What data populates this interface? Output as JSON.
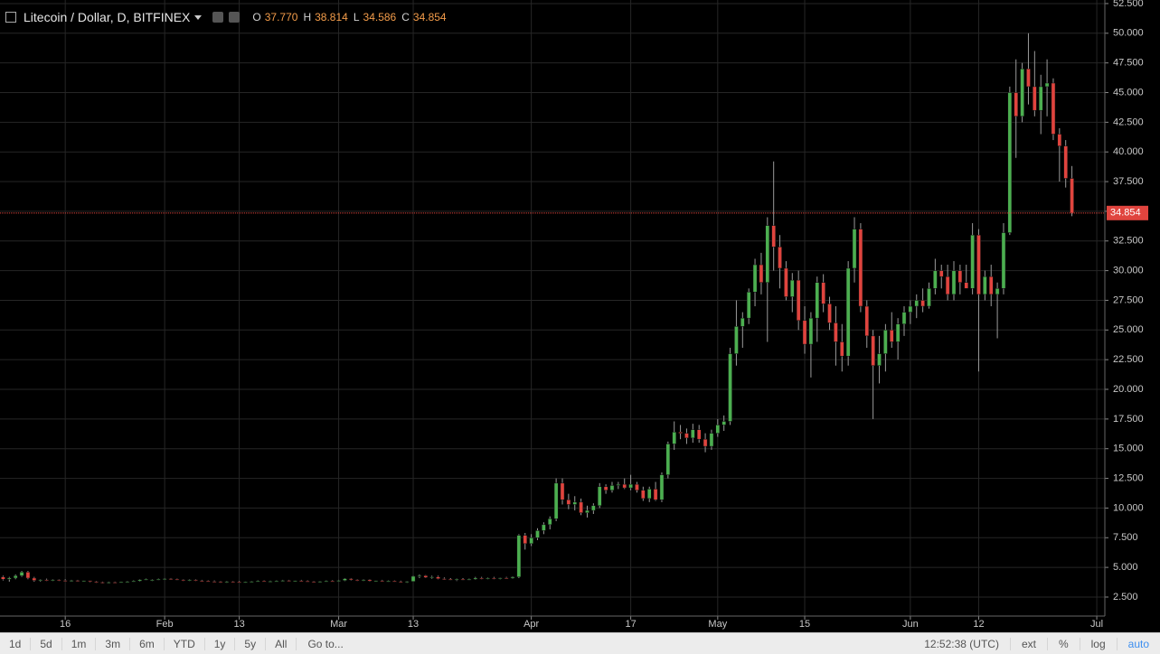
{
  "chart_data": {
    "type": "candlestick",
    "title": "Litecoin / Dollar, D, BITFINEX",
    "ohlc_legend": [
      {
        "key": "O",
        "value": "37.770"
      },
      {
        "key": "H",
        "value": "38.814"
      },
      {
        "key": "L",
        "value": "34.586"
      },
      {
        "key": "C",
        "value": "34.854"
      }
    ],
    "up_color": "#4caf50",
    "down_color": "#e0443e",
    "wick_color": "#9a9a9a",
    "grid": true,
    "xlim": [
      5.5,
      183.3
    ],
    "xticks": [
      16,
      {
        "value": 32,
        "label": "Feb"
      },
      {
        "value": 44,
        "label": "13"
      },
      {
        "value": 60,
        "label": "Mar"
      },
      {
        "value": 72,
        "label": "13"
      },
      {
        "value": 91,
        "label": "Apr"
      },
      {
        "value": 107,
        "label": "17"
      },
      {
        "value": 121,
        "label": "May"
      },
      {
        "value": 135,
        "label": "15"
      },
      {
        "value": 152,
        "label": "Jun"
      },
      {
        "value": 163,
        "label": "12"
      },
      {
        "value": 182,
        "label": "Jul"
      }
    ],
    "ylim": [
      0.9,
      52.8
    ],
    "yticks": [
      {
        "value": 2.5,
        "label": "2.500"
      },
      {
        "value": 5,
        "label": "5.000"
      },
      {
        "value": 7.5,
        "label": "7.500"
      },
      {
        "value": 10,
        "label": "10.000"
      },
      {
        "value": 12.5,
        "label": "12.500"
      },
      {
        "value": 15,
        "label": "15.000"
      },
      {
        "value": 17.5,
        "label": "17.500"
      },
      {
        "value": 20,
        "label": "20.000"
      },
      {
        "value": 22.5,
        "label": "22.500"
      },
      {
        "value": 25,
        "label": "25.000"
      },
      {
        "value": 27.5,
        "label": "27.500"
      },
      {
        "value": 30,
        "label": "30.000"
      },
      {
        "value": 32.5,
        "label": "32.500"
      },
      {
        "value": 35,
        "label": "35.000"
      },
      {
        "value": 37.5,
        "label": "37.500"
      },
      {
        "value": 40,
        "label": "40.000"
      },
      {
        "value": 42.5,
        "label": "42.500"
      },
      {
        "value": 45,
        "label": "45.000"
      },
      {
        "value": 47.5,
        "label": "47.500"
      },
      {
        "value": 50,
        "label": "50.000"
      },
      {
        "value": 52.5,
        "label": "52.500"
      }
    ],
    "x": [
      6,
      7,
      8,
      9,
      10,
      11,
      12,
      13,
      14,
      15,
      16,
      17,
      18,
      19,
      20,
      21,
      22,
      23,
      24,
      25,
      26,
      27,
      28,
      29,
      30,
      31,
      32,
      33,
      34,
      35,
      36,
      37,
      38,
      39,
      40,
      41,
      42,
      43,
      44,
      45,
      46,
      47,
      48,
      49,
      50,
      51,
      52,
      53,
      54,
      55,
      56,
      57,
      58,
      59,
      60,
      61,
      62,
      63,
      64,
      65,
      66,
      67,
      68,
      69,
      70,
      71,
      72,
      73,
      74,
      75,
      76,
      77,
      78,
      79,
      80,
      81,
      82,
      83,
      84,
      85,
      86,
      87,
      88,
      89,
      90,
      91,
      92,
      93,
      94,
      95,
      96,
      97,
      98,
      99,
      100,
      101,
      102,
      103,
      104,
      105,
      106,
      107,
      108,
      109,
      110,
      111,
      112,
      113,
      114,
      115,
      116,
      117,
      118,
      119,
      120,
      121,
      122,
      123,
      124,
      125,
      126,
      127,
      128,
      129,
      130,
      131,
      132,
      133,
      134,
      135,
      136,
      137,
      138,
      139,
      140,
      141,
      142,
      143,
      144,
      145,
      146,
      147,
      148,
      149,
      150,
      151,
      152,
      153,
      154,
      155,
      156,
      157,
      158,
      159,
      160,
      161,
      162,
      163,
      164,
      165,
      166,
      167,
      168,
      169,
      170,
      171,
      172,
      173,
      174,
      175,
      176,
      177,
      178
    ],
    "ohlc": [
      [
        4.2,
        4.3,
        3.9,
        4.0
      ],
      [
        4.0,
        4.2,
        3.8,
        4.1
      ],
      [
        4.1,
        4.4,
        4.0,
        4.3
      ],
      [
        4.3,
        4.7,
        4.2,
        4.6
      ],
      [
        4.6,
        4.7,
        4.0,
        4.1
      ],
      [
        4.1,
        4.2,
        3.8,
        3.9
      ],
      [
        3.9,
        4.0,
        3.8,
        3.95
      ],
      [
        3.95,
        4.05,
        3.85,
        3.9
      ],
      [
        3.9,
        4.0,
        3.85,
        3.95
      ],
      [
        3.95,
        4.0,
        3.85,
        3.9
      ],
      [
        3.9,
        4.0,
        3.8,
        3.85
      ],
      [
        3.85,
        3.95,
        3.8,
        3.9
      ],
      [
        3.9,
        3.95,
        3.8,
        3.85
      ],
      [
        3.85,
        3.9,
        3.8,
        3.88
      ],
      [
        3.88,
        3.9,
        3.75,
        3.8
      ],
      [
        3.8,
        3.85,
        3.7,
        3.75
      ],
      [
        3.75,
        3.8,
        3.65,
        3.7
      ],
      [
        3.7,
        3.8,
        3.65,
        3.75
      ],
      [
        3.75,
        3.8,
        3.7,
        3.72
      ],
      [
        3.72,
        3.8,
        3.7,
        3.78
      ],
      [
        3.78,
        3.85,
        3.75,
        3.8
      ],
      [
        3.8,
        3.9,
        3.75,
        3.85
      ],
      [
        3.85,
        4.0,
        3.8,
        3.95
      ],
      [
        3.95,
        4.05,
        3.9,
        4.0
      ],
      [
        3.9,
        4.0,
        3.85,
        3.95
      ],
      [
        3.95,
        4.05,
        3.9,
        4.0
      ],
      [
        4.0,
        4.1,
        3.95,
        4.05
      ],
      [
        4.05,
        4.1,
        3.95,
        4.0
      ],
      [
        4.0,
        4.05,
        3.9,
        3.95
      ],
      [
        3.95,
        4.0,
        3.85,
        3.9
      ],
      [
        3.9,
        4.0,
        3.85,
        3.95
      ],
      [
        3.95,
        4.0,
        3.85,
        3.88
      ],
      [
        3.88,
        3.95,
        3.8,
        3.85
      ],
      [
        3.85,
        3.9,
        3.78,
        3.82
      ],
      [
        3.82,
        3.9,
        3.75,
        3.8
      ],
      [
        3.8,
        3.85,
        3.7,
        3.75
      ],
      [
        3.75,
        3.85,
        3.7,
        3.8
      ],
      [
        3.8,
        3.85,
        3.72,
        3.78
      ],
      [
        3.78,
        3.85,
        3.7,
        3.75
      ],
      [
        3.75,
        3.8,
        3.7,
        3.78
      ],
      [
        3.78,
        3.85,
        3.75,
        3.82
      ],
      [
        3.82,
        3.9,
        3.78,
        3.85
      ],
      [
        3.85,
        3.9,
        3.78,
        3.8
      ],
      [
        3.8,
        3.88,
        3.75,
        3.83
      ],
      [
        3.83,
        3.9,
        3.8,
        3.86
      ],
      [
        3.86,
        3.95,
        3.82,
        3.9
      ],
      [
        3.9,
        3.95,
        3.82,
        3.85
      ],
      [
        3.85,
        3.9,
        3.8,
        3.88
      ],
      [
        3.88,
        3.95,
        3.82,
        3.84
      ],
      [
        3.84,
        3.9,
        3.78,
        3.8
      ],
      [
        3.8,
        3.85,
        3.75,
        3.78
      ],
      [
        3.78,
        3.85,
        3.72,
        3.82
      ],
      [
        3.82,
        3.9,
        3.78,
        3.86
      ],
      [
        3.86,
        3.92,
        3.8,
        3.84
      ],
      [
        3.84,
        3.95,
        3.8,
        3.9
      ],
      [
        3.9,
        4.1,
        3.85,
        4.05
      ],
      [
        4.05,
        4.1,
        3.9,
        3.95
      ],
      [
        3.95,
        4.0,
        3.85,
        3.9
      ],
      [
        3.9,
        4.0,
        3.85,
        3.95
      ],
      [
        3.95,
        4.0,
        3.8,
        3.85
      ],
      [
        3.85,
        3.9,
        3.8,
        3.88
      ],
      [
        3.88,
        3.95,
        3.8,
        3.82
      ],
      [
        3.82,
        3.9,
        3.78,
        3.86
      ],
      [
        3.86,
        3.9,
        3.78,
        3.8
      ],
      [
        3.8,
        3.88,
        3.72,
        3.76
      ],
      [
        3.76,
        3.85,
        3.7,
        3.82
      ],
      [
        3.82,
        4.3,
        3.8,
        4.25
      ],
      [
        4.25,
        4.4,
        4.1,
        4.3
      ],
      [
        4.3,
        4.35,
        4.1,
        4.15
      ],
      [
        4.15,
        4.3,
        4.05,
        4.2
      ],
      [
        4.2,
        4.3,
        4.0,
        4.05
      ],
      [
        4.05,
        4.15,
        3.95,
        4.0
      ],
      [
        4.0,
        4.1,
        3.9,
        3.95
      ],
      [
        3.95,
        4.05,
        3.85,
        4.0
      ],
      [
        4.0,
        4.1,
        3.9,
        3.95
      ],
      [
        3.95,
        4.05,
        3.9,
        4.0
      ],
      [
        4.0,
        4.2,
        3.95,
        4.1
      ],
      [
        4.1,
        4.2,
        4.0,
        4.05
      ],
      [
        4.05,
        4.15,
        4.0,
        4.1
      ],
      [
        4.1,
        4.2,
        4.0,
        4.05
      ],
      [
        4.05,
        4.15,
        4.0,
        4.12
      ],
      [
        4.12,
        4.2,
        4.05,
        4.1
      ],
      [
        4.1,
        4.25,
        4.05,
        4.2
      ],
      [
        4.2,
        7.8,
        4.1,
        7.7
      ],
      [
        7.7,
        7.9,
        6.5,
        7.0
      ],
      [
        7.0,
        7.8,
        6.8,
        7.5
      ],
      [
        7.5,
        8.3,
        7.3,
        8.1
      ],
      [
        8.1,
        8.8,
        7.8,
        8.6
      ],
      [
        8.6,
        9.3,
        8.2,
        9.1
      ],
      [
        9.1,
        12.5,
        8.9,
        12.1
      ],
      [
        12.1,
        12.5,
        10.3,
        10.7
      ],
      [
        10.7,
        11.2,
        9.9,
        10.3
      ],
      [
        10.3,
        11.0,
        9.8,
        10.5
      ],
      [
        10.5,
        10.8,
        9.4,
        9.6
      ],
      [
        9.6,
        10.2,
        9.2,
        9.8
      ],
      [
        9.8,
        10.4,
        9.5,
        10.2
      ],
      [
        10.2,
        12.1,
        10.0,
        11.8
      ],
      [
        11.8,
        12.0,
        11.2,
        11.5
      ],
      [
        11.5,
        12.2,
        11.3,
        11.9
      ],
      [
        11.9,
        12.2,
        11.6,
        12.0
      ],
      [
        12.0,
        12.5,
        11.6,
        11.7
      ],
      [
        11.7,
        12.8,
        11.5,
        12.0
      ],
      [
        12.0,
        12.2,
        11.3,
        11.5
      ],
      [
        11.5,
        11.8,
        10.6,
        10.8
      ],
      [
        10.8,
        11.8,
        10.5,
        11.6
      ],
      [
        11.6,
        12.2,
        10.6,
        10.7
      ],
      [
        10.7,
        13.0,
        10.5,
        12.8
      ],
      [
        12.8,
        15.6,
        12.5,
        15.4
      ],
      [
        15.4,
        17.3,
        14.9,
        16.4
      ],
      [
        16.4,
        17.0,
        15.8,
        16.3
      ],
      [
        16.3,
        16.7,
        15.4,
        15.9
      ],
      [
        15.9,
        17.1,
        15.5,
        16.6
      ],
      [
        16.6,
        17.0,
        15.5,
        15.8
      ],
      [
        15.8,
        16.3,
        14.7,
        15.2
      ],
      [
        15.2,
        16.6,
        14.9,
        16.3
      ],
      [
        16.3,
        17.5,
        16.0,
        17.0
      ],
      [
        17.0,
        17.8,
        16.5,
        17.3
      ],
      [
        17.3,
        23.5,
        17.0,
        23.0
      ],
      [
        23.0,
        27.5,
        22.0,
        25.3
      ],
      [
        25.3,
        26.5,
        23.5,
        26.0
      ],
      [
        26.0,
        28.5,
        25.5,
        28.2
      ],
      [
        28.2,
        31.0,
        27.0,
        30.5
      ],
      [
        30.5,
        31.5,
        28.0,
        29.0
      ],
      [
        29.0,
        34.5,
        24.0,
        33.8
      ],
      [
        33.8,
        39.2,
        30.0,
        32.0
      ],
      [
        32.0,
        33.0,
        28.5,
        30.2
      ],
      [
        30.2,
        30.8,
        27.5,
        27.8
      ],
      [
        27.8,
        29.8,
        26.5,
        29.2
      ],
      [
        29.2,
        30.0,
        25.0,
        25.8
      ],
      [
        25.8,
        27.0,
        23.0,
        23.8
      ],
      [
        23.8,
        26.5,
        21.0,
        26.0
      ],
      [
        26.0,
        29.5,
        24.0,
        29.0
      ],
      [
        29.0,
        29.7,
        26.5,
        27.2
      ],
      [
        27.2,
        27.8,
        25.0,
        25.6
      ],
      [
        25.6,
        27.0,
        22.0,
        24.0
      ],
      [
        24.0,
        25.5,
        21.5,
        22.8
      ],
      [
        22.8,
        30.8,
        22.0,
        30.2
      ],
      [
        30.2,
        34.5,
        29.0,
        33.5
      ],
      [
        33.5,
        34.0,
        26.5,
        27.0
      ],
      [
        27.0,
        27.5,
        23.5,
        24.5
      ],
      [
        24.5,
        25.0,
        17.5,
        22.0
      ],
      [
        22.0,
        24.5,
        20.5,
        23.0
      ],
      [
        23.0,
        25.5,
        21.5,
        25.0
      ],
      [
        25.0,
        26.5,
        23.5,
        24.0
      ],
      [
        24.0,
        26.0,
        22.5,
        25.5
      ],
      [
        25.5,
        27.0,
        24.5,
        26.5
      ],
      [
        26.5,
        27.5,
        25.5,
        27.0
      ],
      [
        27.0,
        28.0,
        26.0,
        27.5
      ],
      [
        27.5,
        28.5,
        26.5,
        27.0
      ],
      [
        27.0,
        29.0,
        26.8,
        28.5
      ],
      [
        28.5,
        31.0,
        28.0,
        30.0
      ],
      [
        30.0,
        30.5,
        28.5,
        29.5
      ],
      [
        29.5,
        30.5,
        27.5,
        28.0
      ],
      [
        28.0,
        30.8,
        27.5,
        30.0
      ],
      [
        30.0,
        30.5,
        28.0,
        29.0
      ],
      [
        29.0,
        30.5,
        28.5,
        28.5
      ],
      [
        28.5,
        34.0,
        28.0,
        33.0
      ],
      [
        33.0,
        33.5,
        21.5,
        28.0
      ],
      [
        28.0,
        30.0,
        27.5,
        29.5
      ],
      [
        29.5,
        30.5,
        27.0,
        28.0
      ],
      [
        28.0,
        29.0,
        24.3,
        28.5
      ],
      [
        28.5,
        34.0,
        28.0,
        33.2
      ],
      [
        33.2,
        45.5,
        33.0,
        45.0
      ],
      [
        45.0,
        47.8,
        39.5,
        43.0
      ],
      [
        43.0,
        47.5,
        42.5,
        47.0
      ],
      [
        47.0,
        50.0,
        44.0,
        45.5
      ],
      [
        45.5,
        48.5,
        43.0,
        43.5
      ],
      [
        43.5,
        46.5,
        41.5,
        45.5
      ],
      [
        45.5,
        47.8,
        43.0,
        45.8
      ],
      [
        45.8,
        46.2,
        41.0,
        41.5
      ],
      [
        41.5,
        42.0,
        37.5,
        40.5
      ],
      [
        40.5,
        41.0,
        37.0,
        37.77
      ],
      [
        37.77,
        38.814,
        34.586,
        34.854
      ]
    ],
    "toolbar": {
      "ranges": [
        "1d",
        "5d",
        "1m",
        "3m",
        "6m",
        "YTD",
        "1y",
        "5y",
        "All"
      ],
      "goto": "Go to...",
      "time": "12:52:38 (UTC)",
      "options": [
        "ext",
        "%",
        "log",
        "auto"
      ]
    }
  }
}
